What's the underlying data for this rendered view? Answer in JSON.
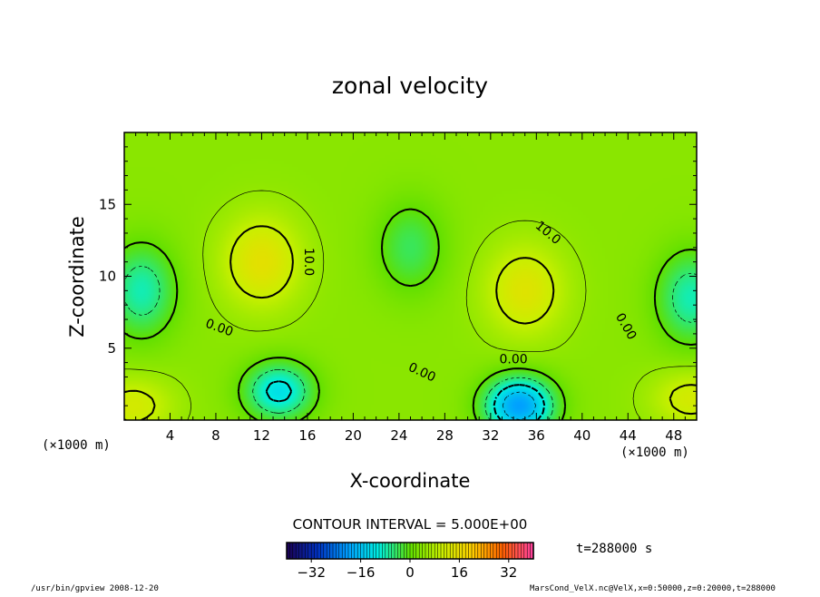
{
  "chart_data": {
    "type": "contour",
    "title": "zonal velocity",
    "xlabel": "X-coordinate",
    "ylabel": "Z-coordinate",
    "x_unit": "(×1000 m)",
    "y_unit": "(×1000 m)",
    "xlim": [
      0,
      50
    ],
    "ylim": [
      0,
      20
    ],
    "x_ticks": [
      4,
      8,
      12,
      16,
      20,
      24,
      28,
      32,
      36,
      40,
      44,
      48
    ],
    "y_ticks": [
      5,
      10,
      15
    ],
    "contour_interval_text": "CONTOUR INTERVAL = 5.000E+00",
    "contour_labels": [
      {
        "text": "10.0",
        "x": 16.1,
        "z": 11.0,
        "angle": 90
      },
      {
        "text": "0.00",
        "x": 8.3,
        "z": 6.4,
        "angle": 20
      },
      {
        "text": "10.0",
        "x": 37.0,
        "z": 13.0,
        "angle": 40
      },
      {
        "text": "0.00",
        "x": 26.0,
        "z": 3.3,
        "angle": 25
      },
      {
        "text": "0.00",
        "x": 34.0,
        "z": 4.2,
        "angle": 0
      },
      {
        "text": "0.00",
        "x": 43.8,
        "z": 6.5,
        "angle": 60
      }
    ],
    "features": [
      {
        "kind": "max",
        "x": 12.0,
        "z": 11.0,
        "value": 15
      },
      {
        "kind": "max",
        "x": 35.0,
        "z": 9.0,
        "value": 14
      },
      {
        "kind": "min",
        "x": 13.5,
        "z": 2.0,
        "value": -12
      },
      {
        "kind": "min",
        "x": 34.5,
        "z": 1.0,
        "value": -20
      },
      {
        "kind": "min",
        "x": 1.5,
        "z": 9.0,
        "value": -8
      },
      {
        "kind": "min",
        "x": 49.5,
        "z": 8.5,
        "value": -8
      },
      {
        "kind": "min",
        "x": 25.0,
        "z": 12.0,
        "value": -4
      },
      {
        "kind": "max",
        "x": 0.8,
        "z": 1.0,
        "value": 12
      },
      {
        "kind": "max",
        "x": 49.5,
        "z": 1.5,
        "value": 12
      }
    ],
    "colorbar": {
      "range": [
        -40,
        40
      ],
      "ticks": [
        -32,
        -16,
        0,
        16,
        32
      ],
      "colors": [
        "#1a0050",
        "#0030c0",
        "#00a0ff",
        "#00f0e0",
        "#60e000",
        "#c8f000",
        "#ffd000",
        "#ff6000",
        "#ff40a0"
      ]
    }
  },
  "annotations": {
    "time": "t=288000 s",
    "footer_left": "/usr/bin/gpview   2008-12-20",
    "footer_right": "MarsCond_VelX.nc@VelX,x=0:50000,z=0:20000,t=288000"
  }
}
